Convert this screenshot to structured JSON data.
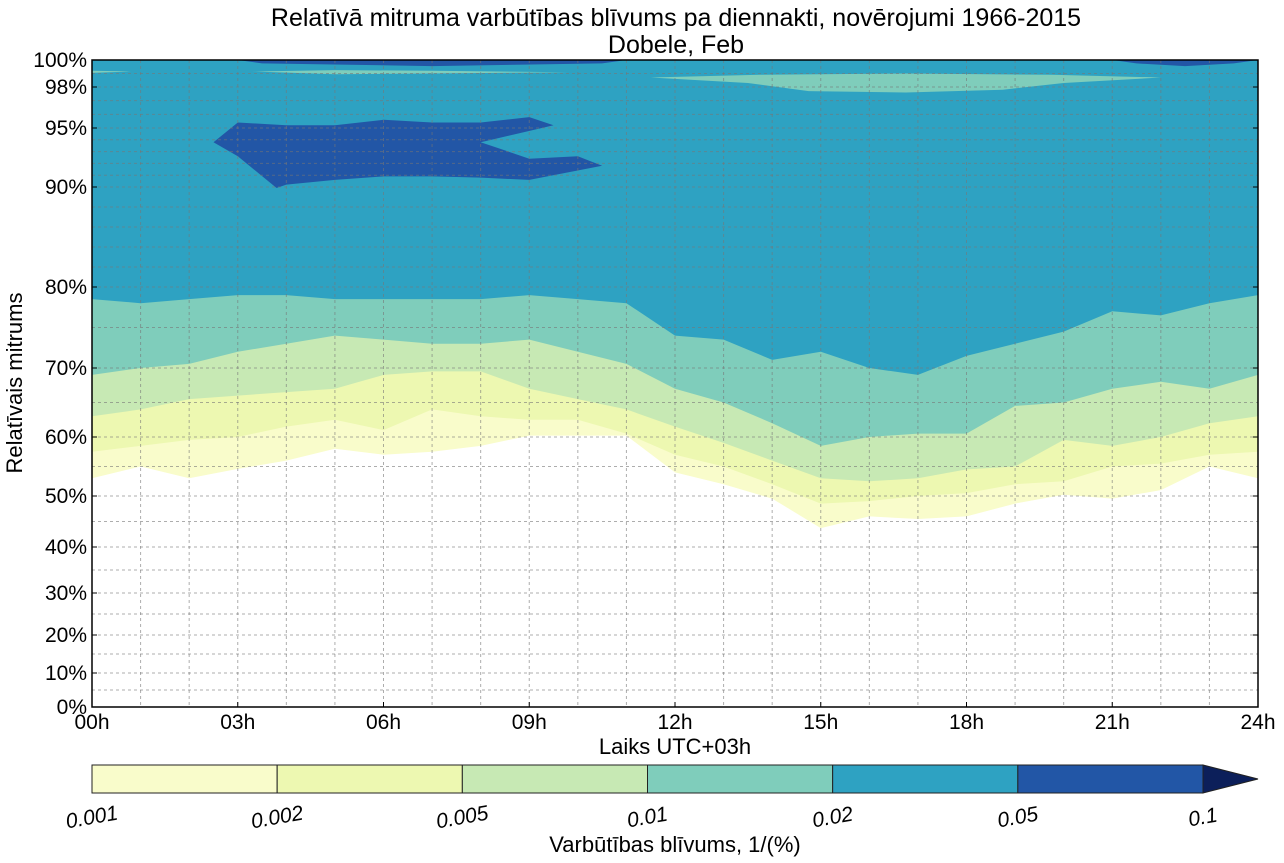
{
  "chart_data": {
    "type": "contourf",
    "title": "Relatīvā mitruma varbūtības blīvums pa diennakti, novērojumi 1966-2015",
    "subtitle": "Dobele, Feb",
    "xlabel": "Laiks UTC+03h",
    "ylabel": "Relatīvais mitrums",
    "xlim": [
      0,
      24
    ],
    "ylim": [
      0,
      100
    ],
    "x_ticks": [
      0,
      3,
      6,
      9,
      12,
      15,
      18,
      21,
      24
    ],
    "x_tick_labels": [
      "00h",
      "03h",
      "06h",
      "09h",
      "12h",
      "15h",
      "18h",
      "21h",
      "24h"
    ],
    "y_ticks": [
      0,
      10,
      20,
      30,
      40,
      50,
      60,
      70,
      80,
      90,
      95,
      98,
      100
    ],
    "y_tick_labels": [
      "0%",
      "10%",
      "20%",
      "30%",
      "40%",
      "50%",
      "60%",
      "70%",
      "80%",
      "90%",
      "95%",
      "98%",
      "100%"
    ],
    "y_minor_grid": [
      5,
      15,
      25,
      35,
      45,
      55,
      65,
      75,
      82,
      84,
      86,
      88,
      91,
      92,
      93,
      94,
      96,
      97,
      99
    ],
    "grid": true,
    "hours": [
      0,
      1,
      2,
      3,
      4,
      5,
      6,
      7,
      8,
      9,
      10,
      11,
      12,
      13,
      14,
      15,
      16,
      17,
      18,
      19,
      20,
      21,
      22,
      23,
      24
    ],
    "levels": [
      0.001,
      0.002,
      0.005,
      0.01,
      0.02,
      0.05,
      0.1
    ],
    "level_colors": [
      "#f9fccb",
      "#edf8b1",
      "#c7e9b4",
      "#7fcdbb",
      "#2ea2c2",
      "#2256a6",
      "#0c1f5a"
    ],
    "colorbar": {
      "label": "Varbūtības blīvums, 1/(%)",
      "tick_labels": [
        "0.001",
        "0.002",
        "0.005",
        "0.01",
        "0.02",
        "0.05",
        "0.1"
      ],
      "extend": "max",
      "placement": "bottom"
    },
    "lower_boundaries_rh": [
      {
        "level": 0.001,
        "values": [
          53.0,
          55.0,
          53.0,
          54.6,
          56.0,
          58.0,
          57.0,
          57.5,
          58.5,
          60.2,
          60.2,
          60.2,
          54.0,
          52.0,
          49.5,
          43.7,
          46.0,
          45.5,
          46.0,
          48.5,
          50.2,
          49.5,
          51.0,
          55.0,
          53.0
        ]
      },
      {
        "level": 0.002,
        "values": [
          57.5,
          58.5,
          59.5,
          60.0,
          61.5,
          62.5,
          61.0,
          64.0,
          63.0,
          62.5,
          62.5,
          60.5,
          57.0,
          55.0,
          52.0,
          48.5,
          49.0,
          50.0,
          50.5,
          52.0,
          52.5,
          55.0,
          55.5,
          57.0,
          57.5
        ]
      },
      {
        "level": 0.005,
        "values": [
          63.0,
          64.0,
          65.5,
          66.0,
          66.5,
          67.0,
          69.0,
          69.5,
          69.5,
          67.0,
          65.5,
          64.0,
          61.5,
          59.0,
          56.0,
          53.0,
          52.5,
          53.0,
          54.5,
          55.0,
          59.5,
          58.5,
          60.0,
          62.0,
          63.0
        ]
      },
      {
        "level": 0.01,
        "values": [
          69.0,
          70.0,
          70.5,
          72.0,
          73.0,
          74.0,
          73.5,
          73.0,
          73.0,
          73.5,
          72.0,
          70.5,
          67.0,
          65.0,
          62.0,
          58.5,
          60.0,
          60.5,
          60.5,
          64.5,
          65.0,
          67.0,
          68.0,
          67.0,
          69.0
        ]
      },
      {
        "level": 0.02,
        "values": [
          78.5,
          78.0,
          78.5,
          79.0,
          79.0,
          78.5,
          78.5,
          78.5,
          78.5,
          79.0,
          78.5,
          78.0,
          74.0,
          73.5,
          71.0,
          72.0,
          70.0,
          69.0,
          71.5,
          73.0,
          74.5,
          77.0,
          76.5,
          78.0,
          79.0
        ]
      }
    ],
    "high_density_regions": [
      {
        "level": 0.05,
        "description": "core near 93-95% RH from 02.5h to 10.5h",
        "outline_hours": [
          2.5,
          3.0,
          4.0,
          5.0,
          6.0,
          7.0,
          8.0,
          9.0,
          9.5,
          8.0,
          9.0,
          10.0,
          10.5,
          9.0,
          8.0,
          7.0,
          6.0,
          5.0,
          4.0,
          3.8,
          3.0
        ],
        "outline_rh": [
          93.8,
          95.4,
          95.2,
          95.2,
          95.6,
          95.4,
          95.4,
          95.8,
          95.2,
          93.8,
          92.4,
          92.6,
          91.8,
          90.6,
          90.8,
          90.9,
          90.9,
          90.6,
          90.2,
          89.9,
          92.6
        ]
      },
      {
        "level": 0.05,
        "description": "thin band near 99.6-100% RH",
        "from_hour": 3,
        "to_hour": 11
      },
      {
        "level": 0.05,
        "description": "thin band near 99.6-100% RH",
        "from_hour": 21,
        "to_hour": 24
      }
    ],
    "low_density_top_band": {
      "level": 0.01,
      "description": "band near 97.5-99% RH",
      "from_hour": 11.5,
      "to_hour": 22
    }
  }
}
